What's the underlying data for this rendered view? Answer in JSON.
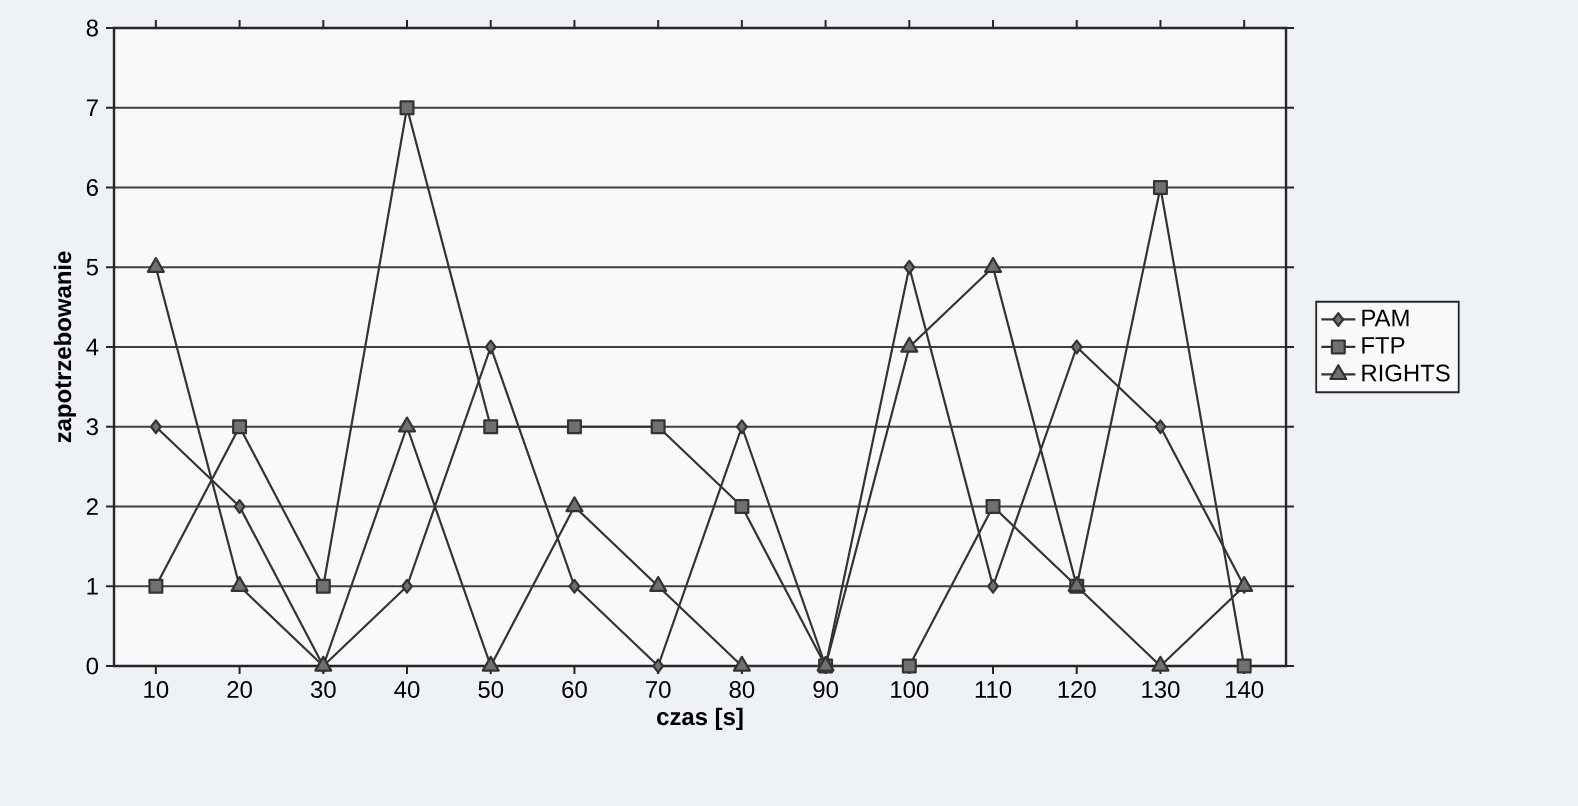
{
  "chart_data": {
    "type": "line",
    "xlabel": "czas [s]",
    "ylabel": "zapotrzebowanie",
    "categories": [
      "10",
      "20",
      "30",
      "40",
      "50",
      "60",
      "70",
      "80",
      "90",
      "100",
      "110",
      "120",
      "130",
      "140"
    ],
    "series": [
      {
        "name": "PAM",
        "color": "#333333",
        "marker": "diamond",
        "values": [
          3,
          2,
          0,
          1,
          4,
          1,
          0,
          3,
          0,
          5,
          1,
          4,
          3,
          1
        ]
      },
      {
        "name": "FTP",
        "color": "#333333",
        "marker": "square",
        "values": [
          1,
          3,
          1,
          7,
          3,
          3,
          3,
          2,
          0,
          0,
          2,
          1,
          6,
          0
        ]
      },
      {
        "name": "RIGHTS",
        "color": "#333333",
        "marker": "triangle",
        "values": [
          5,
          1,
          0,
          3,
          0,
          2,
          1,
          0,
          0,
          4,
          5,
          1,
          0,
          1
        ]
      }
    ],
    "ylim": [
      0,
      8
    ],
    "yticks": [
      0,
      1,
      2,
      3,
      4,
      5,
      6,
      7,
      8
    ],
    "grid": "y",
    "legend": "right",
    "line_style": "solid"
  }
}
